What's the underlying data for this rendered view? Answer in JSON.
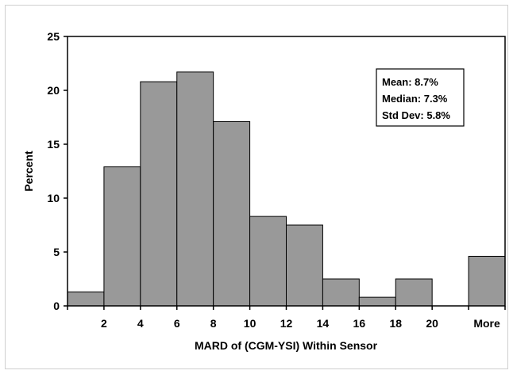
{
  "chart_data": {
    "type": "bar",
    "title": "",
    "xlabel": "MARD of (CGM-YSI) Within Sensor",
    "ylabel": "Percent",
    "ylim": [
      0,
      25
    ],
    "yticks": [
      "0",
      "5",
      "10",
      "15",
      "20",
      "25"
    ],
    "categories": [
      "0-2",
      "2-4",
      "4-6",
      "6-8",
      "8-10",
      "10-12",
      "12-14",
      "14-16",
      "16-18",
      "18-20",
      "20+",
      "More"
    ],
    "values": [
      1.3,
      12.9,
      20.8,
      21.7,
      17.1,
      8.3,
      7.5,
      2.5,
      0.8,
      2.5,
      0,
      4.6
    ],
    "xtick_labels": [
      "2",
      "4",
      "6",
      "8",
      "10",
      "12",
      "14",
      "16",
      "18",
      "20",
      "More"
    ],
    "bar_color": "#999999",
    "grid": false,
    "annotations": [
      "Mean: 8.7%",
      "Median: 7.3%",
      "Std Dev: 5.8%"
    ]
  }
}
